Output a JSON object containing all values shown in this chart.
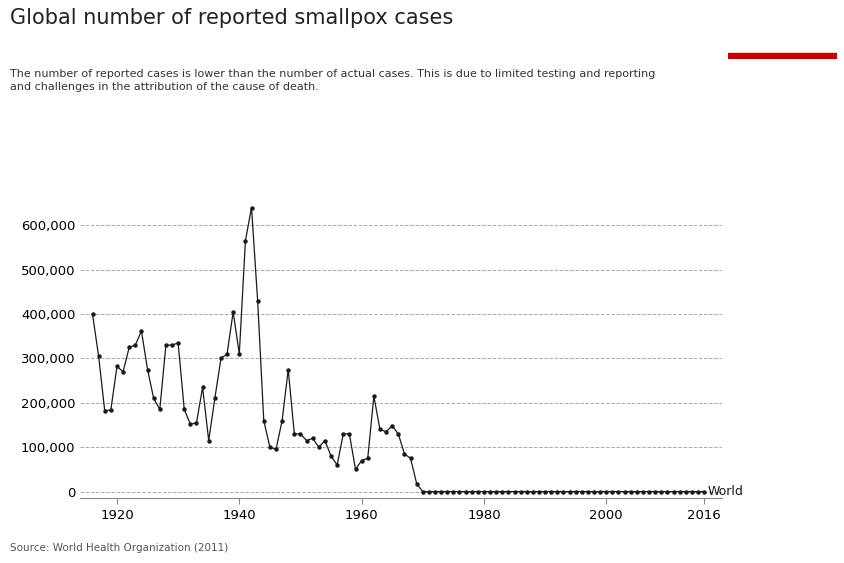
{
  "title": "Global number of reported smallpox cases",
  "subtitle": "The number of reported cases is lower than the number of actual cases. This is due to limited testing and reporting\nand challenges in the attribution of the cause of death.",
  "source": "Source: World Health Organization (2011)",
  "series_label": "World",
  "years": [
    1916,
    1917,
    1918,
    1919,
    1920,
    1921,
    1922,
    1923,
    1924,
    1925,
    1926,
    1927,
    1928,
    1929,
    1930,
    1931,
    1932,
    1933,
    1934,
    1935,
    1936,
    1937,
    1938,
    1939,
    1940,
    1941,
    1942,
    1943,
    1944,
    1945,
    1946,
    1947,
    1948,
    1949,
    1950,
    1951,
    1952,
    1953,
    1954,
    1955,
    1956,
    1957,
    1958,
    1959,
    1960,
    1961,
    1962,
    1963,
    1964,
    1965,
    1966,
    1967,
    1968,
    1969,
    1970,
    1971,
    1972,
    1973,
    1974,
    1975,
    1976,
    1977,
    1978,
    1979,
    1980,
    1981,
    1982,
    1983,
    1984,
    1985,
    1986,
    1987,
    1988,
    1989,
    1990,
    1991,
    1992,
    1993,
    1994,
    1995,
    1996,
    1997,
    1998,
    1999,
    2000,
    2001,
    2002,
    2003,
    2004,
    2005,
    2006,
    2007,
    2008,
    2009,
    2010,
    2011,
    2012,
    2013,
    2014,
    2015,
    2016
  ],
  "values": [
    400000,
    305000,
    182000,
    184000,
    282000,
    270000,
    325000,
    330000,
    362000,
    275000,
    210000,
    185000,
    330000,
    330000,
    335000,
    185000,
    152000,
    155000,
    235000,
    115000,
    210000,
    300000,
    310000,
    405000,
    310000,
    565000,
    640000,
    430000,
    160000,
    100000,
    95000,
    160000,
    275000,
    130000,
    130000,
    115000,
    120000,
    100000,
    115000,
    80000,
    60000,
    130000,
    130000,
    50000,
    70000,
    75000,
    215000,
    140000,
    135000,
    148000,
    130000,
    85000,
    75000,
    18000,
    0,
    0,
    0,
    0,
    0,
    0,
    0,
    0,
    0,
    0,
    0,
    0,
    0,
    0,
    0,
    0,
    0,
    0,
    0,
    0,
    0,
    0,
    0,
    0,
    0,
    0,
    0,
    0,
    0,
    0,
    0,
    0,
    0,
    0,
    0,
    0,
    0,
    0,
    0,
    0,
    0,
    0,
    0,
    0,
    0,
    0,
    0
  ],
  "line_color": "#1a1a1a",
  "marker_color": "#1a1a1a",
  "background_color": "#ffffff",
  "grid_color": "#aaaaaa",
  "yticks": [
    0,
    100000,
    200000,
    300000,
    400000,
    500000,
    600000
  ],
  "xticks": [
    1920,
    1940,
    1960,
    1980,
    2000,
    2016
  ],
  "ylim": [
    -15000,
    670000
  ],
  "xlim": [
    1914,
    2019
  ],
  "owid_box_color": "#003366",
  "owid_red": "#cc0000"
}
